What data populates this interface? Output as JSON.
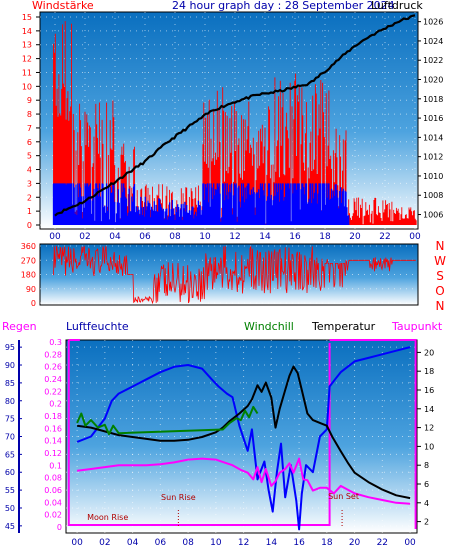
{
  "colors": {
    "background": "#ffffff",
    "plot_top": "#0a6fbf",
    "plot_bottom": "#ffffff",
    "windspeed": "#ff0000",
    "gust": "#0000ff",
    "pressure": "#000000",
    "humidity": "#0000ff",
    "windchill": "#008000",
    "temperature": "#000000",
    "dewpoint": "#ff00ff",
    "rain": "#ff00ff",
    "event_text": "#b00000",
    "axis_text": "#0000aa"
  },
  "header": {
    "left_label": "Windstärke",
    "title": "24 hour graph day : 28 September 2024",
    "right_label": "Luftdruck"
  },
  "panel3_header": {
    "rain": "Regen",
    "humidity": "Luftfeuchte",
    "windchill": "Windchill",
    "temperature": "Temperatur",
    "dewpoint": "Taupunkt"
  },
  "events": {
    "moonrise": "Moon Rise",
    "sunrise": "Sun Rise",
    "sunset": "Sun Set"
  },
  "direction_labels": [
    "N",
    "W",
    "S",
    "O",
    "N"
  ],
  "chart_data": [
    {
      "type": "bar",
      "panel": "wind_pressure",
      "x_ticks": [
        "00",
        "02",
        "04",
        "06",
        "08",
        "10",
        "12",
        "14",
        "16",
        "18",
        "20",
        "22",
        "00"
      ],
      "y_left_label": "Windstärke",
      "y_left_ticks": [
        "0",
        "1",
        "2",
        "3",
        "4",
        "5",
        "6",
        "7",
        "8",
        "9",
        "10",
        "11",
        "12",
        "13",
        "14",
        "15"
      ],
      "y_left_range": [
        0,
        15
      ],
      "y_right_label": "Luftdruck",
      "y_right_ticks": [
        "1006",
        "1008",
        "1010",
        "1012",
        "1014",
        "1016",
        "1018",
        "1020",
        "1022",
        "1024",
        "1026"
      ],
      "y_right_range": [
        1004.5,
        1027
      ],
      "pressure_series": {
        "t": [
          0,
          2,
          4,
          6,
          7.5,
          9,
          10.5,
          12,
          13.5,
          15,
          16,
          17,
          18.1,
          19,
          20,
          21,
          22,
          23,
          24
        ],
        "v": [
          1006,
          1007.4,
          1009.4,
          1011.5,
          1013.5,
          1015.2,
          1016.8,
          1017.7,
          1018.4,
          1018.8,
          1019.2,
          1019.6,
          1021,
          1022.2,
          1023.5,
          1024.5,
          1025.3,
          1026.1,
          1026.6
        ]
      }
    },
    {
      "type": "line",
      "panel": "wind_direction",
      "y_ticks": [
        "0",
        "90",
        "180",
        "270",
        "360"
      ],
      "y_range": [
        0,
        360
      ],
      "right_labels": [
        "N",
        "W",
        "S",
        "O",
        "N"
      ]
    },
    {
      "type": "line",
      "panel": "humidity_temperature",
      "x_ticks": [
        "00",
        "02",
        "04",
        "06",
        "08",
        "10",
        "12",
        "14",
        "16",
        "18",
        "20",
        "22",
        "00"
      ],
      "humidity_ticks": [
        "45",
        "50",
        "55",
        "60",
        "65",
        "70",
        "75",
        "80",
        "85",
        "90",
        "95"
      ],
      "humidity_range": [
        43,
        97
      ],
      "rain_ticks": [
        "0",
        "0.02",
        "0.04",
        "0.06",
        "0.08",
        "0.1",
        "0.12",
        "0.14",
        "0.16",
        "0.18",
        "0.2",
        "0.22",
        "0.24",
        "0.26",
        "0.28",
        "0.3"
      ],
      "rain_range": [
        0,
        0.3
      ],
      "temperature_ticks": [
        "2",
        "4",
        "6",
        "8",
        "10",
        "12",
        "14",
        "16",
        "18",
        "20"
      ],
      "temperature_range": [
        1,
        21
      ],
      "series": [
        {
          "name": "Luftfeuchte",
          "t": [
            0,
            1,
            2,
            2.5,
            3,
            4,
            5,
            6,
            7,
            8,
            9,
            9.7,
            10.2,
            10.8,
            11.2,
            11.7,
            12.3,
            12.6,
            13,
            13.5,
            13.8,
            14.1,
            14.4,
            14.7,
            15,
            15.4,
            15.8,
            16,
            16.2,
            16.5,
            17,
            17.5,
            18,
            18.2,
            18.6,
            19,
            20,
            21,
            22,
            23,
            24
          ],
          "v": [
            68.5,
            70,
            75,
            80,
            82,
            84,
            86,
            88,
            89.5,
            90,
            89,
            86,
            84,
            82,
            81,
            73,
            66,
            72,
            58,
            63,
            55,
            49,
            60,
            68,
            53,
            62,
            52,
            44,
            54,
            62,
            60,
            70,
            72,
            84,
            86,
            88,
            91,
            92,
            93,
            94,
            95
          ]
        },
        {
          "name": "Temperatur",
          "t": [
            0,
            1,
            2,
            3,
            4,
            5,
            6,
            7,
            8,
            9,
            10,
            10.5,
            11,
            11.7,
            12.3,
            12.6,
            13,
            13.3,
            13.6,
            14,
            14.3,
            14.6,
            15,
            15.3,
            15.6,
            15.9,
            16.2,
            16.6,
            17,
            17.5,
            18,
            18.4,
            19,
            19.5,
            20,
            21,
            22,
            23,
            24
          ],
          "v": [
            12.2,
            12,
            11.6,
            11.2,
            11,
            10.8,
            10.6,
            10.6,
            10.7,
            11,
            11.5,
            12,
            12.7,
            13.5,
            14.3,
            15,
            16.5,
            15.8,
            16.8,
            15.2,
            12,
            14,
            16,
            17.5,
            18.5,
            17.8,
            16,
            13.5,
            12.8,
            12.5,
            12.2,
            11,
            9.5,
            8.3,
            7.2,
            6.2,
            5.4,
            4.8,
            4.5
          ]
        },
        {
          "name": "Windchill",
          "t": [
            0,
            0.3,
            0.6,
            1,
            1.5,
            2,
            2.3,
            2.6,
            3,
            10.5,
            11,
            11.5,
            11.8,
            12.1,
            12.4,
            12.7,
            13
          ],
          "v": [
            12.5,
            13.5,
            12.2,
            12.8,
            12,
            12.3,
            11.3,
            12.2,
            11.4,
            11.8,
            12.5,
            13,
            12.8,
            13.8,
            13.1,
            14.2,
            13.5
          ]
        },
        {
          "name": "Taupunkt",
          "t": [
            0,
            1,
            2,
            3,
            4,
            5,
            6,
            7,
            8,
            9,
            10,
            10.6,
            11.2,
            11.8,
            12.3,
            12.7,
            13,
            13.3,
            13.6,
            14,
            14.3,
            14.6,
            15,
            15.3,
            15.6,
            16,
            16.3,
            16.6,
            17,
            17.5,
            18,
            18.5,
            19,
            20,
            21,
            22,
            23,
            24
          ],
          "v": [
            7.4,
            7.6,
            7.8,
            8,
            8,
            8,
            8.1,
            8.3,
            8.6,
            8.7,
            8.6,
            8.3,
            8,
            7.5,
            7.2,
            6.5,
            7.8,
            6.2,
            7.6,
            5.8,
            6.3,
            7.2,
            7.6,
            8.2,
            7.2,
            8.7,
            6.5,
            6.4,
            5.3,
            5.6,
            5.6,
            5,
            5.8,
            5,
            4.6,
            4.3,
            4,
            3.9,
            3.7
          ]
        }
      ],
      "events": [
        {
          "name": "Moon Rise",
          "t": 0
        },
        {
          "name": "Sun Rise",
          "t": 7.3
        },
        {
          "name": "Sun Set",
          "t": 19.1
        }
      ]
    }
  ]
}
